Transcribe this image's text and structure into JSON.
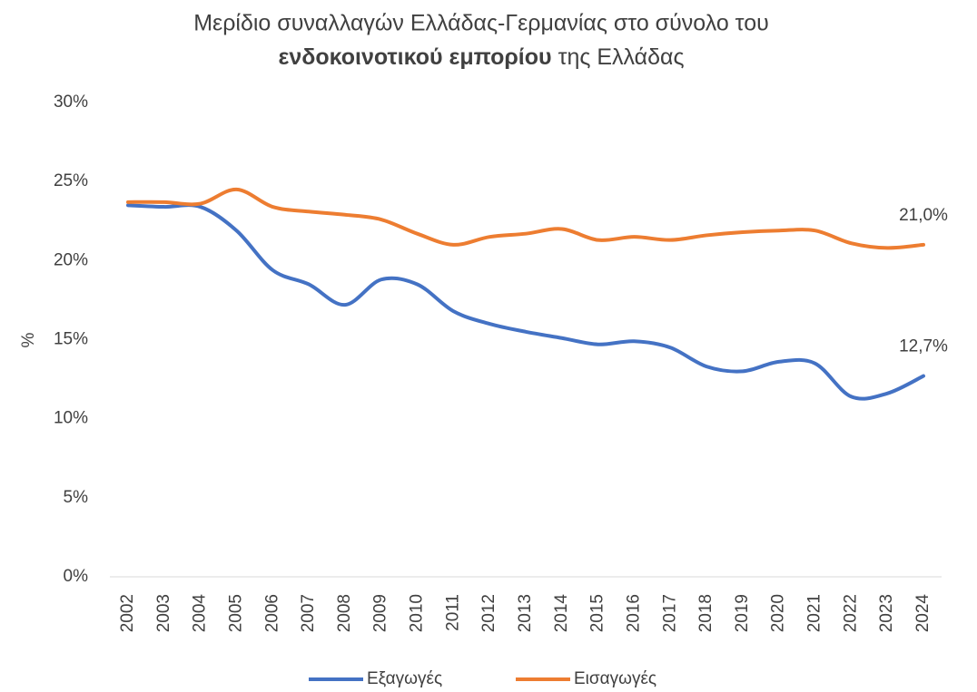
{
  "chart_data": {
    "type": "line",
    "title": {
      "line1": "Μερίδιο συναλλαγών Ελλάδας-Γερμανίας στο σύνολο του",
      "bold": "ενδοκοινοτικού εμπορίου",
      "rest": "της Ελλάδας"
    },
    "y_label": "%",
    "categories": [
      "2002",
      "2003",
      "2004",
      "2005",
      "2006",
      "2007",
      "2008",
      "2009",
      "2010",
      "2011",
      "2012",
      "2013",
      "2014",
      "2015",
      "2016",
      "2017",
      "2018",
      "2019",
      "2020",
      "2021",
      "2022",
      "2023",
      "2024"
    ],
    "series": [
      {
        "name": "Εξαγωγές",
        "color": "#4472c4",
        "values": [
          23.5,
          23.4,
          23.4,
          21.9,
          19.4,
          18.5,
          17.2,
          18.8,
          18.5,
          16.8,
          16.0,
          15.5,
          15.1,
          14.7,
          14.9,
          14.5,
          13.3,
          13.0,
          13.6,
          13.5,
          11.4,
          11.6,
          12.7
        ],
        "value_labels": [
          null,
          null,
          null,
          null,
          null,
          null,
          null,
          null,
          null,
          null,
          null,
          null,
          null,
          null,
          null,
          null,
          null,
          null,
          null,
          null,
          null,
          null,
          "12,7%"
        ]
      },
      {
        "name": "Εισαγωγές",
        "color": "#ed7d31",
        "values": [
          23.7,
          23.7,
          23.6,
          24.5,
          23.4,
          23.1,
          22.9,
          22.6,
          21.7,
          21.0,
          21.5,
          21.7,
          22.0,
          21.3,
          21.5,
          21.3,
          21.6,
          21.8,
          21.9,
          21.9,
          21.1,
          20.8,
          21.0
        ],
        "value_labels": [
          null,
          null,
          null,
          null,
          null,
          null,
          null,
          null,
          null,
          null,
          null,
          null,
          null,
          null,
          null,
          null,
          null,
          null,
          null,
          null,
          null,
          null,
          "21,0%"
        ]
      }
    ],
    "ylim": [
      0,
      30
    ],
    "yticks": [
      {
        "value": 0,
        "label": "0%"
      },
      {
        "value": 5,
        "label": "5%"
      },
      {
        "value": 10,
        "label": "10%"
      },
      {
        "value": 15,
        "label": "15%"
      },
      {
        "value": 20,
        "label": "20%"
      },
      {
        "value": 25,
        "label": "25%"
      },
      {
        "value": 30,
        "label": "30%"
      }
    ],
    "grid": false,
    "smooth": true,
    "legend": "bottom"
  }
}
